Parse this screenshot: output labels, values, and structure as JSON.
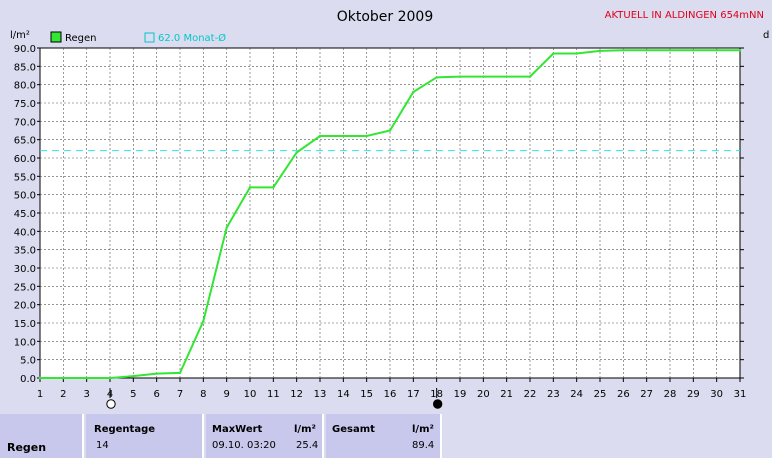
{
  "chart_data": {
    "type": "line",
    "title": "Oktober 2009",
    "corner_label": "AKTUELL IN ALDINGEN 654mNN",
    "ylabel_left": "l/m²",
    "ylabel_right": "d",
    "ylim": [
      0,
      90
    ],
    "yticks": [
      "0.0",
      "5.0",
      "10.0",
      "15.0",
      "20.0",
      "25.0",
      "30.0",
      "35.0",
      "40.0",
      "45.0",
      "50.0",
      "55.0",
      "60.0",
      "65.0",
      "70.0",
      "75.0",
      "80.0",
      "85.0",
      "90.0"
    ],
    "xlim": [
      1,
      31
    ],
    "x": [
      1,
      2,
      3,
      4,
      5,
      6,
      7,
      8,
      9,
      10,
      11,
      12,
      13,
      14,
      15,
      16,
      17,
      18,
      19,
      20,
      21,
      22,
      23,
      24,
      25,
      26,
      27,
      28,
      29,
      30,
      31
    ],
    "legend": "top-left",
    "grid": true,
    "series": [
      {
        "name": "Regen",
        "color": "#33e633",
        "values": [
          0,
          0,
          0,
          0,
          0.5,
          1.2,
          1.4,
          15.5,
          41,
          52,
          52,
          61.5,
          66,
          66,
          66,
          67.5,
          78,
          82,
          82.2,
          82.2,
          82.2,
          82.2,
          88.5,
          88.5,
          89.2,
          89.4,
          89.4,
          89.4,
          89.4,
          89.4,
          89.4
        ]
      },
      {
        "name": "62.0 Monat-Ø",
        "color": "#33e6e6",
        "style": "dashed",
        "value": 62
      }
    ],
    "moon_markers": [
      {
        "day": 4,
        "phase": "full-moon"
      },
      {
        "day": 18,
        "phase": "new-moon"
      }
    ]
  },
  "stats": {
    "row_label": "Regen",
    "regentage_label": "Regentage",
    "regentage_value": "14",
    "maxwert_label": "MaxWert",
    "maxwert_unit": "l/m²",
    "maxwert_date": "09.10.  03:20",
    "maxwert_value": "25.4",
    "gesamt_label": "Gesamt",
    "gesamt_unit": "l/m²",
    "gesamt_value": "89.4"
  }
}
